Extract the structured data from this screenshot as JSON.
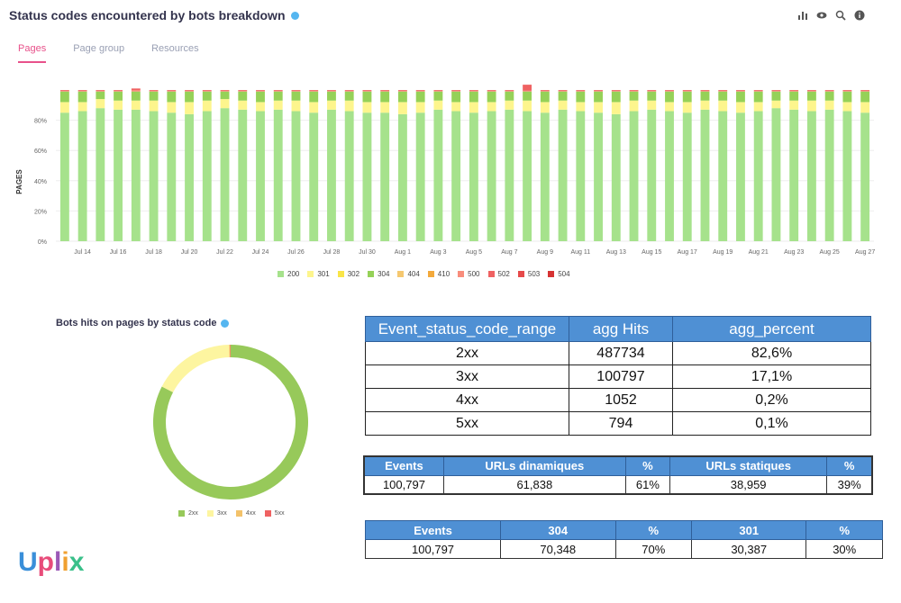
{
  "header": {
    "title": "Status codes encountered by bots breakdown"
  },
  "tabs": [
    {
      "label": "Pages",
      "active": true
    },
    {
      "label": "Page group",
      "active": false
    },
    {
      "label": "Resources",
      "active": false
    }
  ],
  "colors": {
    "200": "#a6e28c",
    "301": "#fdf58d",
    "302": "#f9e548",
    "304": "#95d158",
    "404": "#f5c870",
    "410": "#f3a93b",
    "500": "#f88d7c",
    "502": "#ef6262",
    "503": "#e64a4a",
    "504": "#d63333",
    "accent": "#e8518a",
    "info": "#55b6f0"
  },
  "chart_data": [
    {
      "type": "bar",
      "stacked": true,
      "ylabel": "PAGES",
      "ylim": [
        0,
        100
      ],
      "yticks": [
        "0%",
        "20%",
        "40%",
        "60%",
        "80%"
      ],
      "xtick_labels": [
        "Jul 14",
        "Jul 16",
        "Jul 18",
        "Jul 20",
        "Jul 22",
        "Jul 24",
        "Jul 26",
        "Jul 28",
        "Jul 30",
        "Aug 1",
        "Aug 3",
        "Aug 5",
        "Aug 7",
        "Aug 9",
        "Aug 11",
        "Aug 13",
        "Aug 15",
        "Aug 17",
        "Aug 19",
        "Aug 21",
        "Aug 23",
        "Aug 25",
        "Aug 27"
      ],
      "legend": [
        "200",
        "301",
        "302",
        "304",
        "404",
        "410",
        "500",
        "502",
        "503",
        "504"
      ],
      "legend_position": "bottom",
      "series": [
        {
          "name": "200",
          "values": [
            85,
            86,
            88,
            87,
            87,
            86,
            85,
            84,
            86,
            88,
            87,
            86,
            87,
            86,
            85,
            87,
            86,
            85,
            85,
            84,
            85,
            87,
            86,
            85,
            86,
            87,
            86,
            85,
            87,
            86,
            85,
            84,
            86,
            87,
            86,
            85,
            87,
            86,
            85,
            86,
            88,
            87,
            86,
            87,
            86,
            85
          ]
        },
        {
          "name": "301",
          "values": [
            7,
            6,
            6,
            6,
            6,
            7,
            7,
            8,
            7,
            6,
            6,
            6,
            6,
            7,
            7,
            6,
            7,
            7,
            7,
            8,
            7,
            6,
            6,
            7,
            6,
            6,
            7,
            7,
            6,
            6,
            7,
            8,
            7,
            6,
            6,
            7,
            6,
            7,
            7,
            6,
            5,
            6,
            7,
            6,
            6,
            7
          ]
        },
        {
          "name": "304",
          "values": [
            7,
            7,
            5,
            6,
            6,
            6,
            7,
            7,
            6,
            5,
            6,
            7,
            6,
            6,
            7,
            6,
            6,
            7,
            7,
            7,
            7,
            6,
            7,
            7,
            7,
            6,
            6,
            7,
            6,
            7,
            7,
            7,
            6,
            6,
            7,
            7,
            6,
            6,
            7,
            7,
            6,
            6,
            6,
            6,
            7,
            7
          ]
        },
        {
          "name": "500",
          "values": [
            0.5,
            0.5,
            0.5,
            0.5,
            1,
            0.5,
            0.5,
            0.5,
            0.5,
            0.5,
            0.5,
            0.5,
            0.5,
            0.5,
            0.5,
            0.5,
            0.5,
            0.5,
            0.5,
            0.5,
            0.5,
            0.5,
            0.5,
            0.5,
            0.5,
            0.5,
            0.5,
            0.5,
            0.5,
            0.5,
            0.5,
            0.5,
            0.5,
            0.5,
            0.5,
            0.5,
            0.5,
            0.5,
            0.5,
            0.5,
            0.5,
            0.5,
            0.5,
            0.5,
            0.5,
            0.5
          ]
        },
        {
          "name": "502",
          "values": [
            0.5,
            0.5,
            0.5,
            0.5,
            1,
            0.5,
            0.5,
            0.5,
            0.5,
            0.5,
            0.5,
            0.5,
            0.5,
            0.5,
            0.5,
            0.5,
            0.5,
            0.5,
            0.5,
            0.5,
            0.5,
            0.5,
            0.5,
            0.5,
            0.5,
            0.5,
            4,
            0.5,
            0.5,
            0.5,
            0.5,
            0.5,
            0.5,
            0.5,
            0.5,
            0.5,
            0.5,
            0.5,
            0.5,
            0.5,
            0.5,
            0.5,
            0.5,
            0.5,
            0.5,
            0.5
          ]
        }
      ]
    },
    {
      "type": "pie",
      "title": "Bots hits on pages by status code",
      "donut": true,
      "categories": [
        "2xx",
        "3xx",
        "4xx",
        "5xx"
      ],
      "values": [
        82.6,
        17.1,
        0.2,
        0.1
      ],
      "colors": [
        "#97c95a",
        "#fdf5a0",
        "#f3c26a",
        "#ef6262"
      ],
      "legend_position": "bottom"
    }
  ],
  "table1": {
    "headers": [
      "Event_status_code_range",
      "agg Hits",
      "agg_percent"
    ],
    "rows": [
      [
        "2xx",
        "487734",
        "82,6%"
      ],
      [
        "3xx",
        "100797",
        "17,1%"
      ],
      [
        "4xx",
        "1052",
        "0,2%"
      ],
      [
        "5xx",
        "794",
        "0,1%"
      ]
    ]
  },
  "table2": {
    "headers": [
      "Events",
      "URLs dinamiques",
      "%",
      "URLs statiques",
      "%"
    ],
    "rows": [
      [
        "100,797",
        "61,838",
        "61%",
        "38,959",
        "39%"
      ]
    ]
  },
  "table3": {
    "headers": [
      "Events",
      "304",
      "%",
      "301",
      "%"
    ],
    "rows": [
      [
        "100,797",
        "70,348",
        "70%",
        "30,387",
        "30%"
      ]
    ]
  },
  "logo": {
    "text": "Uplix"
  }
}
